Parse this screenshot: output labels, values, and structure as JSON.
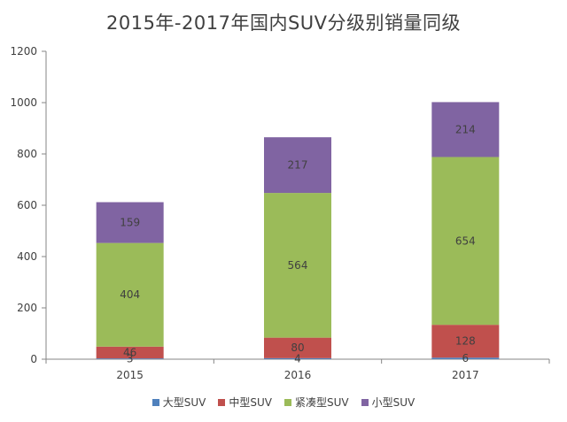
{
  "chart_data": {
    "type": "bar",
    "stacked": true,
    "title": "2015年-2017年国内SUV分级别销量同级",
    "categories": [
      "2015",
      "2016",
      "2017"
    ],
    "series": [
      {
        "name": "大型SUV",
        "color": "#4F81BD",
        "values": [
          3,
          4,
          6
        ]
      },
      {
        "name": "中型SUV",
        "color": "#C0504D",
        "values": [
          46,
          80,
          128
        ]
      },
      {
        "name": "紧凑型SUV",
        "color": "#9BBB59",
        "values": [
          404,
          564,
          654
        ]
      },
      {
        "name": "小型SUV",
        "color": "#8064A2",
        "values": [
          159,
          217,
          214
        ]
      }
    ],
    "y_ticks": [
      "0",
      "200",
      "400",
      "600",
      "800",
      "1000",
      "1200"
    ],
    "ylim": [
      0,
      1200
    ],
    "legend_position": "bottom",
    "grid": false
  }
}
